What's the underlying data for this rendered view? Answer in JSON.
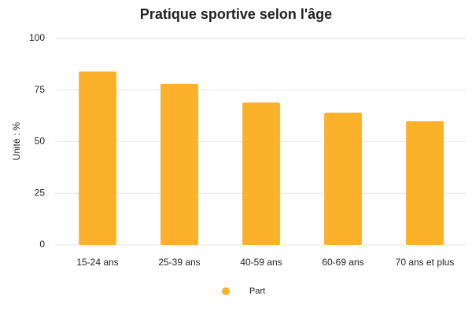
{
  "chart_data": {
    "type": "bar",
    "title": "Pratique sportive selon l'âge",
    "y_label": "Unité : %",
    "categories": [
      "15-24 ans",
      "25-39 ans",
      "40-59 ans",
      "60-69 ans",
      "70 ans et plus"
    ],
    "series": [
      {
        "name": "Part",
        "color": "#fbb12a",
        "values": [
          84,
          78,
          69,
          64,
          60
        ]
      }
    ],
    "ylim": [
      0,
      100
    ],
    "yticks": [
      0,
      25,
      50,
      75,
      100
    ],
    "grid": true,
    "legend": "bottom"
  }
}
